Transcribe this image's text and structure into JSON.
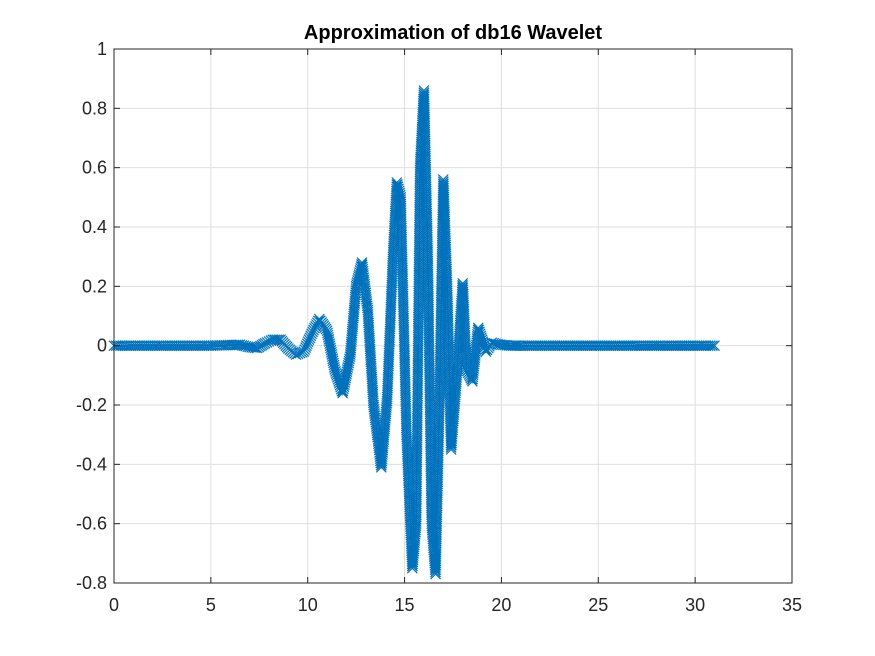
{
  "chart_data": {
    "type": "line",
    "title": "Approximation of db16 Wavelet",
    "xlabel": "",
    "ylabel": "",
    "xlim": [
      0,
      35
    ],
    "ylim": [
      -0.8,
      1
    ],
    "xticks": [
      0,
      5,
      10,
      15,
      20,
      25,
      30,
      35
    ],
    "xtick_labels": [
      "0",
      "5",
      "10",
      "15",
      "20",
      "25",
      "30",
      "35"
    ],
    "yticks": [
      -0.8,
      -0.6,
      -0.4,
      -0.2,
      0,
      0.2,
      0.4,
      0.6,
      0.8,
      1
    ],
    "ytick_labels": [
      "-0.8",
      "-0.6",
      "-0.4",
      "-0.2",
      "0",
      "0.2",
      "0.4",
      "0.6",
      "0.8",
      "1"
    ],
    "grid": true,
    "marker": "x",
    "color": "#0072bd",
    "series": [
      {
        "x": [
          0,
          1,
          2,
          3,
          4,
          5,
          6,
          6.5,
          7,
          7.4,
          7.8,
          8.2,
          8.6,
          9.0,
          9.4,
          9.8,
          10.2,
          10.6,
          11.0,
          11.4,
          11.8,
          12.2,
          12.5,
          12.8,
          13.1,
          13.4,
          13.8,
          14.1,
          14.4,
          14.6,
          14.8,
          15.1,
          15.4,
          15.6,
          15.8,
          16.0,
          16.2,
          16.4,
          16.6,
          16.8,
          17.0,
          17.2,
          17.4,
          17.7,
          18.0,
          18.2,
          18.5,
          18.8,
          19.0,
          19.2,
          19.5,
          19.8,
          20.0,
          20.5,
          21,
          22,
          23,
          24,
          25,
          26,
          27,
          28,
          29,
          30,
          31
        ],
        "y": [
          0,
          0,
          0,
          0,
          0,
          0,
          0.002,
          0.003,
          -0.005,
          -0.008,
          0.008,
          0.02,
          0.02,
          -0.01,
          -0.03,
          -0.02,
          0.04,
          0.09,
          0.05,
          -0.08,
          -0.16,
          -0.03,
          0.2,
          0.28,
          0.12,
          -0.2,
          -0.41,
          -0.18,
          0.3,
          0.55,
          0.5,
          -0.3,
          -0.75,
          -0.6,
          0.6,
          0.86,
          0.3,
          -0.6,
          -0.77,
          -0.2,
          0.56,
          0.2,
          -0.35,
          -0.1,
          0.21,
          -0.08,
          -0.12,
          0.06,
          0.02,
          -0.02,
          0.01,
          0.005,
          0.003,
          0,
          0,
          0,
          0,
          0,
          0,
          0,
          0,
          0,
          0,
          0,
          0
        ]
      }
    ]
  }
}
